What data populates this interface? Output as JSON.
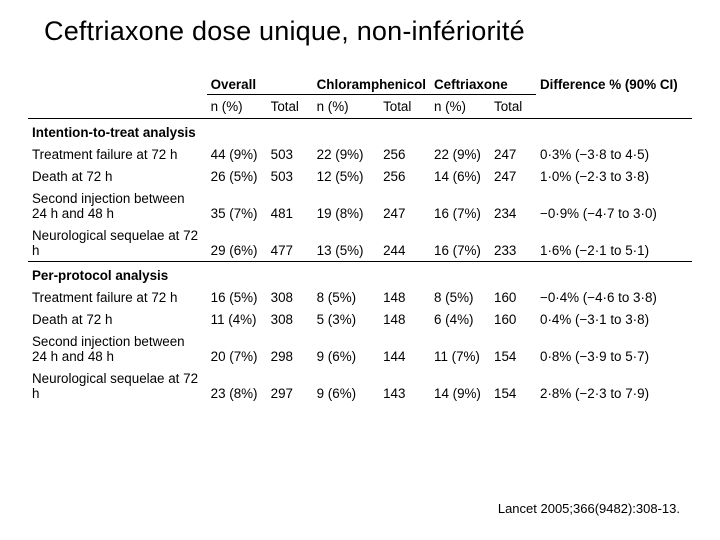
{
  "title": "Ceftriaxone dose unique, non-infériorité",
  "citation": "Lancet 2005;366(9482):308-13.",
  "headers": {
    "overall": "Overall",
    "chlor": "Chloramphenicol",
    "ceftr": "Ceftriaxone",
    "diff": "Difference % (90% CI)",
    "n": "n (%)",
    "total": "Total"
  },
  "sections": [
    {
      "label": "Intention-to-treat analysis",
      "rows": [
        {
          "name": "Treatment failure at 72 h",
          "on": "44 (9%)",
          "ot": "503",
          "cn": "22 (9%)",
          "ct": "256",
          "xn": "22 (9%)",
          "xt": "247",
          "d": "0·3% (−3·8 to 4·5)"
        },
        {
          "name": "Death at 72 h",
          "on": "26 (5%)",
          "ot": "503",
          "cn": "12 (5%)",
          "ct": "256",
          "xn": "14 (6%)",
          "xt": "247",
          "d": "1·0% (−2·3 to 3·8)"
        },
        {
          "name": "Second injection between 24 h and 48 h",
          "on": "35 (7%)",
          "ot": "481",
          "cn": "19 (8%)",
          "ct": "247",
          "xn": "16 (7%)",
          "xt": "234",
          "d": "−0·9% (−4·7 to 3·0)"
        },
        {
          "name": "Neurological sequelae at 72 h",
          "on": "29 (6%)",
          "ot": "477",
          "cn": "13 (5%)",
          "ct": "244",
          "xn": "16 (7%)",
          "xt": "233",
          "d": "1·6% (−2·1 to 5·1)"
        }
      ]
    },
    {
      "label": "Per-protocol analysis",
      "rows": [
        {
          "name": "Treatment failure at 72 h",
          "on": "16 (5%)",
          "ot": "308",
          "cn": "8 (5%)",
          "ct": "148",
          "xn": "8 (5%)",
          "xt": "160",
          "d": "−0·4% (−4·6 to 3·8)"
        },
        {
          "name": "Death at 72 h",
          "on": "11 (4%)",
          "ot": "308",
          "cn": "5 (3%)",
          "ct": "148",
          "xn": "6 (4%)",
          "xt": "160",
          "d": "0·4% (−3·1 to 3·8)"
        },
        {
          "name": "Second injection between 24 h and 48 h",
          "on": "20 (7%)",
          "ot": "298",
          "cn": "9 (6%)",
          "ct": "144",
          "xn": "11 (7%)",
          "xt": "154",
          "d": "0·8% (−3·9 to 5·7)"
        },
        {
          "name": "Neurological sequelae at 72 h",
          "on": "23 (8%)",
          "ot": "297",
          "cn": "9 (6%)",
          "ct": "143",
          "xn": "14 (9%)",
          "xt": "154",
          "d": "2·8% (−2·3 to 7·9)"
        }
      ]
    }
  ]
}
